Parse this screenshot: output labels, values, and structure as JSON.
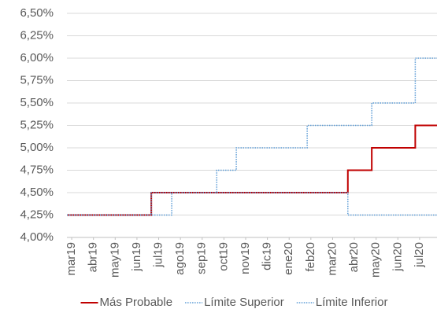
{
  "chart_data": {
    "type": "line",
    "xticks": [
      {
        "value": 0,
        "label": "mar19"
      },
      {
        "value": 1,
        "label": "abr19"
      },
      {
        "value": 2,
        "label": "may19"
      },
      {
        "value": 3,
        "label": "jun19"
      },
      {
        "value": 4,
        "label": "jul19"
      },
      {
        "value": 5,
        "label": "ago19"
      },
      {
        "value": 6,
        "label": "sep19"
      },
      {
        "value": 7,
        "label": "oct19"
      },
      {
        "value": 8,
        "label": "nov19"
      },
      {
        "value": 9,
        "label": "dic19"
      },
      {
        "value": 10,
        "label": "ene20"
      },
      {
        "value": 11,
        "label": "feb20"
      },
      {
        "value": 12,
        "label": "mar20"
      },
      {
        "value": 13,
        "label": "abr20"
      },
      {
        "value": 14,
        "label": "may20"
      },
      {
        "value": 15,
        "label": "jun20"
      },
      {
        "value": 16,
        "label": "jul20"
      }
    ],
    "xlim": [
      -0.22,
      16.8
    ],
    "ylim": [
      4.0,
      6.5
    ],
    "yticks": [
      {
        "value": 4.0,
        "label": "4,00%"
      },
      {
        "value": 4.25,
        "label": "4,25%"
      },
      {
        "value": 4.5,
        "label": "4,50%"
      },
      {
        "value": 4.75,
        "label": "4,75%"
      },
      {
        "value": 5.0,
        "label": "5,00%"
      },
      {
        "value": 5.25,
        "label": "5,25%"
      },
      {
        "value": 5.5,
        "label": "5,50%"
      },
      {
        "value": 5.75,
        "label": "5,75%"
      },
      {
        "value": 6.0,
        "label": "6,00%"
      },
      {
        "value": 6.25,
        "label": "6,25%"
      },
      {
        "value": 6.5,
        "label": "6,50%"
      }
    ],
    "grid": true,
    "legend": "bottom",
    "series": [
      {
        "name": "Más Probable",
        "color": "#c00000",
        "style": "solid",
        "x": [
          -0.22,
          3.66,
          3.66,
          12.7,
          12.7,
          13.8,
          13.8,
          15.8,
          15.8,
          16.8
        ],
        "values": [
          4.25,
          4.25,
          4.5,
          4.5,
          4.75,
          4.75,
          5.0,
          5.0,
          5.25,
          5.25
        ]
      },
      {
        "name": "Límite Superior",
        "color": "#5b9bd5",
        "style": "dotted",
        "x": [
          -0.22,
          3.66,
          3.66,
          6.67,
          6.67,
          7.57,
          7.57,
          10.83,
          10.83,
          13.8,
          13.8,
          15.8,
          15.8,
          16.8
        ],
        "values": [
          4.25,
          4.25,
          4.5,
          4.5,
          4.75,
          4.75,
          5.0,
          5.0,
          5.25,
          5.25,
          5.5,
          5.5,
          6.0,
          6.0
        ]
      },
      {
        "name": "Límite Inferior",
        "color": "#5b9bd5",
        "style": "dotted",
        "x": [
          -0.22,
          4.6,
          4.6,
          12.7,
          12.7,
          16.8
        ],
        "values": [
          4.25,
          4.25,
          4.5,
          4.5,
          4.25,
          4.25
        ]
      }
    ]
  }
}
